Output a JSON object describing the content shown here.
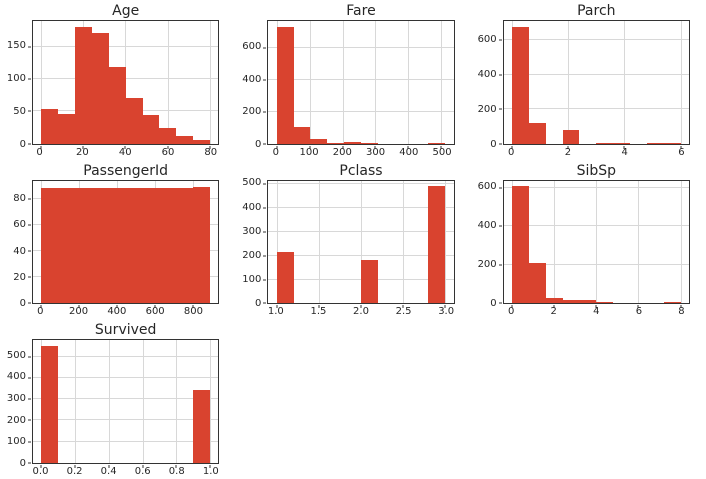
{
  "figure": {
    "background": "#ffffff",
    "bar_color": "#d9432f",
    "grid_color": "#d8d8d8",
    "spine_color": "#333333",
    "text_color": "#262626"
  },
  "chart_data": [
    {
      "type": "bar",
      "title": "Age",
      "bin_start": 0.42,
      "bin_width": 7.958,
      "counts": [
        54,
        46,
        180,
        172,
        118,
        70,
        45,
        24,
        12,
        5
      ],
      "xlim": [
        -3.56,
        83.98
      ],
      "ylim": [
        0,
        190
      ],
      "xticks": [
        0,
        20,
        40,
        60,
        80
      ],
      "xtick_labels": [
        "0",
        "20",
        "40",
        "60",
        "80"
      ],
      "yticks": [
        0,
        50,
        100,
        150
      ],
      "ytick_labels": [
        "0",
        "50",
        "100",
        "150"
      ],
      "grid": true,
      "legend": false
    },
    {
      "type": "bar",
      "title": "Fare",
      "bin_start": 0,
      "bin_width": 51.233,
      "counts": [
        732,
        106,
        31,
        2,
        11,
        6,
        0,
        0,
        0,
        3
      ],
      "xlim": [
        -25.6,
        537.9
      ],
      "ylim": [
        0,
        768
      ],
      "xticks": [
        0,
        100,
        200,
        300,
        400,
        500
      ],
      "xtick_labels": [
        "0",
        "100",
        "200",
        "300",
        "400",
        "500"
      ],
      "yticks": [
        0,
        200,
        400,
        600
      ],
      "ytick_labels": [
        "0",
        "200",
        "400",
        "600"
      ],
      "grid": true,
      "legend": false
    },
    {
      "type": "bar",
      "title": "Parch",
      "bin_start": 0,
      "bin_width": 0.6,
      "counts": [
        678,
        118,
        0,
        80,
        0,
        5,
        4,
        0,
        5,
        1
      ],
      "xlim": [
        -0.3,
        6.3
      ],
      "ylim": [
        0,
        712
      ],
      "xticks": [
        0,
        2,
        4,
        6
      ],
      "xtick_labels": [
        "0",
        "2",
        "4",
        "6"
      ],
      "yticks": [
        0,
        200,
        400,
        600
      ],
      "ytick_labels": [
        "0",
        "200",
        "400",
        "600"
      ],
      "grid": true,
      "legend": false
    },
    {
      "type": "bar",
      "title": "PassengerId",
      "bin_start": 1,
      "bin_width": 89,
      "counts": [
        89,
        89,
        89,
        89,
        89,
        89,
        89,
        89,
        89,
        90
      ],
      "xlim": [
        -43.5,
        935.5
      ],
      "ylim": [
        0,
        94.5
      ],
      "xticks": [
        0,
        200,
        400,
        600,
        800
      ],
      "xtick_labels": [
        "0",
        "200",
        "400",
        "600",
        "800"
      ],
      "yticks": [
        0,
        20,
        40,
        60,
        80
      ],
      "ytick_labels": [
        "0",
        "20",
        "40",
        "60",
        "80"
      ],
      "grid": true,
      "legend": false
    },
    {
      "type": "bar",
      "title": "Pclass",
      "bin_start": 1,
      "bin_width": 0.2,
      "counts": [
        216,
        0,
        0,
        0,
        0,
        184,
        0,
        0,
        0,
        491
      ],
      "xlim": [
        0.9,
        3.1
      ],
      "ylim": [
        0,
        515
      ],
      "xticks": [
        1.0,
        1.5,
        2.0,
        2.5,
        3.0
      ],
      "xtick_labels": [
        "1.0",
        "1.5",
        "2.0",
        "2.5",
        "3.0"
      ],
      "yticks": [
        0,
        100,
        200,
        300,
        400,
        500
      ],
      "ytick_labels": [
        "0",
        "100",
        "200",
        "300",
        "400",
        "500"
      ],
      "grid": true,
      "legend": false
    },
    {
      "type": "bar",
      "title": "SibSp",
      "bin_start": 0,
      "bin_width": 0.8,
      "counts": [
        608,
        209,
        28,
        16,
        18,
        5,
        0,
        0,
        0,
        7
      ],
      "xlim": [
        -0.4,
        8.4
      ],
      "ylim": [
        0,
        638
      ],
      "xticks": [
        0,
        2,
        4,
        6,
        8
      ],
      "xtick_labels": [
        "0",
        "2",
        "4",
        "6",
        "8"
      ],
      "yticks": [
        0,
        200,
        400,
        600
      ],
      "ytick_labels": [
        "0",
        "200",
        "400",
        "600"
      ],
      "grid": true,
      "legend": false
    },
    {
      "type": "bar",
      "title": "Survived",
      "bin_start": 0,
      "bin_width": 0.1,
      "counts": [
        549,
        0,
        0,
        0,
        0,
        0,
        0,
        0,
        0,
        342
      ],
      "xlim": [
        -0.05,
        1.05
      ],
      "ylim": [
        0,
        576
      ],
      "xticks": [
        0,
        0.2,
        0.4,
        0.6,
        0.8,
        1.0
      ],
      "xtick_labels": [
        "0.0",
        "0.2",
        "0.4",
        "0.6",
        "0.8",
        "1.0"
      ],
      "yticks": [
        0,
        100,
        200,
        300,
        400,
        500
      ],
      "ytick_labels": [
        "0",
        "100",
        "200",
        "300",
        "400",
        "500"
      ],
      "grid": true,
      "legend": false
    }
  ]
}
